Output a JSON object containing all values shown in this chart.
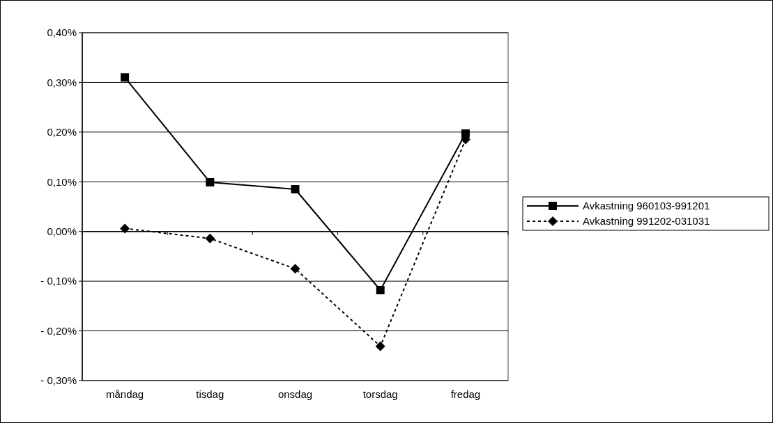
{
  "chart_data": {
    "type": "line",
    "categories": [
      "måndag",
      "tisdag",
      "onsdag",
      "torsdag",
      "fredag"
    ],
    "series": [
      {
        "name": "Avkastning 960103-991201",
        "color": "#000000",
        "marker": "square",
        "line_style": "solid",
        "values": [
          0.31,
          0.099,
          0.085,
          -0.118,
          0.197
        ]
      },
      {
        "name": "Avkastning 991202-031031",
        "color": "#000000",
        "marker": "diamond",
        "line_style": "dashed",
        "values": [
          0.006,
          -0.014,
          -0.075,
          -0.231,
          0.185
        ]
      }
    ],
    "ylim": [
      -0.3,
      0.4
    ],
    "yticks": [
      {
        "value": -0.3,
        "label": "- 0,30%"
      },
      {
        "value": -0.2,
        "label": "- 0,20%"
      },
      {
        "value": -0.1,
        "label": "- 0,10%"
      },
      {
        "value": 0,
        "label": "0,00%"
      },
      {
        "value": 0.1,
        "label": "0,10%"
      },
      {
        "value": 0.2,
        "label": "0,20%"
      },
      {
        "value": 0.3,
        "label": "0,30%"
      },
      {
        "value": 0.4,
        "label": "0,40%"
      }
    ],
    "grid": "y",
    "legend": "right"
  }
}
